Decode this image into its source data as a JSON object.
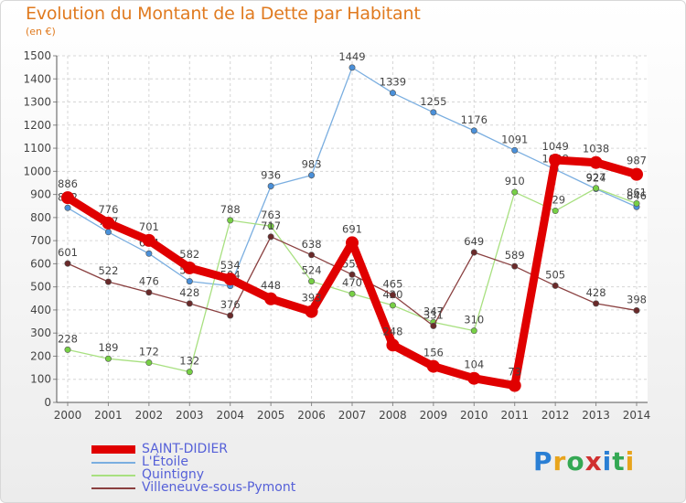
{
  "title": "Evolution du Montant de la Dette par Habitant",
  "subtitle": "(en €)",
  "logo": {
    "text": "Proxiti",
    "colors": [
      "#2a7fd4",
      "#e8a41c",
      "#34a853",
      "#d03030",
      "#2a7fd4",
      "#34a853",
      "#e8a41c"
    ]
  },
  "chart_data": {
    "type": "line",
    "title": "Evolution du Montant de la Dette par Habitant",
    "ylabel": "(en €)",
    "xlabel": "",
    "ylim": [
      0,
      1500
    ],
    "y_ticks": [
      0,
      100,
      200,
      300,
      400,
      500,
      600,
      700,
      800,
      900,
      1000,
      1100,
      1200,
      1300,
      1400,
      1500
    ],
    "x": [
      "2000",
      "2001",
      "2002",
      "2003",
      "2004",
      "2005",
      "2006",
      "2007",
      "2008",
      "2009",
      "2010",
      "2011",
      "2012",
      "2013",
      "2014"
    ],
    "grid": true,
    "legend_position": "bottom-left",
    "series": [
      {
        "name": "SAINT-DIDIER",
        "color": "#e00000",
        "marker": "#e00000",
        "width": 9,
        "point_labels": true,
        "values": [
          886,
          776,
          701,
          582,
          534,
          448,
          393,
          691,
          248,
          156,
          104,
          73,
          1049,
          1038,
          987
        ]
      },
      {
        "name": "L'Étoile",
        "color": "#7aaee0",
        "marker": "#4a90d9",
        "width": 1.3,
        "point_labels": true,
        "values": [
          842,
          737,
          644,
          524,
          504,
          936,
          983,
          1449,
          1339,
          1255,
          1176,
          1091,
          1008,
          924,
          846
        ]
      },
      {
        "name": "Quintigny",
        "color": "#a8e080",
        "marker": "#77d045",
        "width": 1.3,
        "point_labels": true,
        "values": [
          228,
          189,
          172,
          132,
          788,
          763,
          524,
          470,
          420,
          347,
          310,
          910,
          829,
          927,
          861
        ]
      },
      {
        "name": "Villeneuve-sous-Pymont",
        "color": "#8a4040",
        "marker": "#6a2a2a",
        "width": 1.3,
        "point_labels": true,
        "values": [
          601,
          522,
          476,
          428,
          376,
          717,
          638,
          553,
          465,
          331,
          649,
          589,
          505,
          428,
          398
        ]
      }
    ]
  }
}
